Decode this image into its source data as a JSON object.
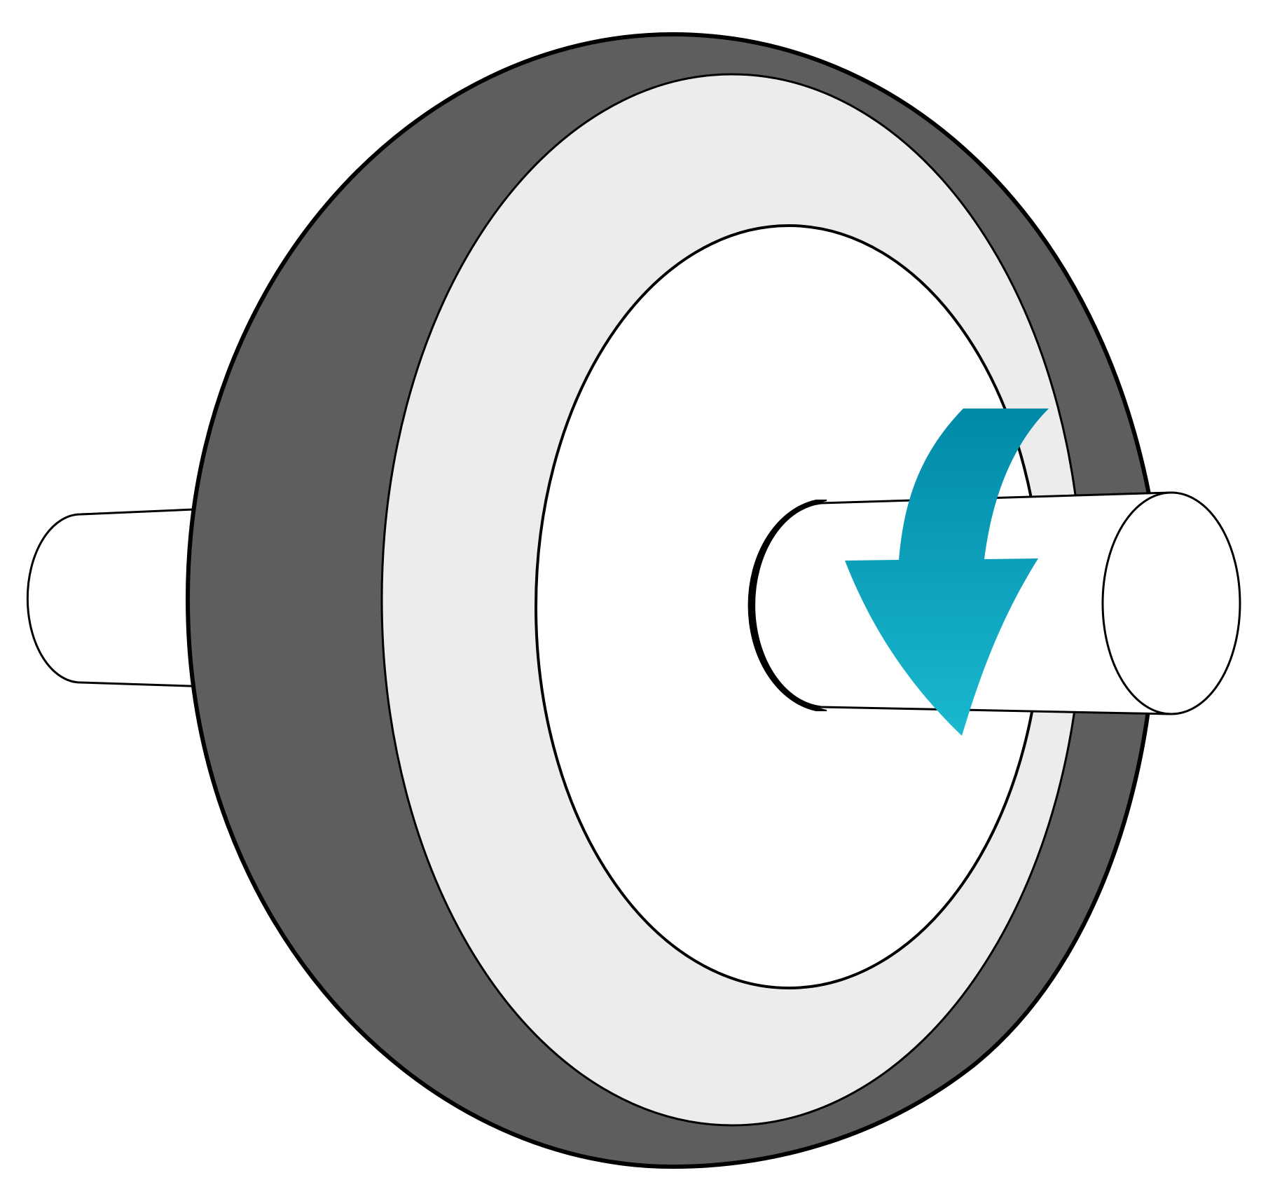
{
  "diagram": {
    "subject": "wheel-on-axle",
    "rotation_direction": "clockwise",
    "colors": {
      "background": "#ffffff",
      "tire": "#5e5e5d",
      "rim": "#ececec",
      "hub": "#ffffff",
      "axle": "#ffffff",
      "outline": "#000000",
      "arrow_top": "#0089a8",
      "arrow_bottom": "#1ab8cf"
    },
    "icons": [
      "wheel-icon",
      "axle-icon",
      "rotation-arrow-icon"
    ]
  }
}
